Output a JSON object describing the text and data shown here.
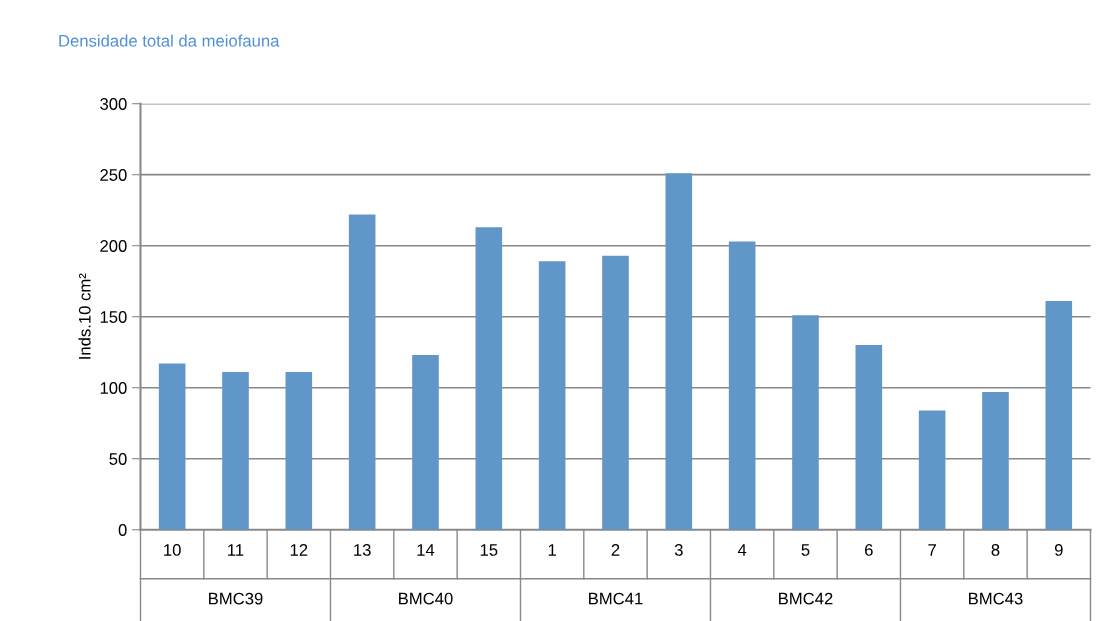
{
  "chart_data": {
    "type": "bar",
    "title": "Densidade total da meiofauna",
    "ylabel": "Inds.10 cm²",
    "categories": [
      "10",
      "11",
      "12",
      "13",
      "14",
      "15",
      "1",
      "2",
      "3",
      "4",
      "5",
      "6",
      "7",
      "8",
      "9"
    ],
    "values": [
      117,
      111,
      111,
      222,
      123,
      213,
      189,
      193,
      251,
      203,
      151,
      130,
      84,
      97,
      161
    ],
    "color": "#6096c8",
    "ylim": [
      0,
      300
    ],
    "yticks": [
      0,
      50,
      100,
      150,
      200,
      250,
      300
    ],
    "grid": "y",
    "annotations": [
      "BMC39",
      "BMC40",
      "BMC41",
      "BMC42",
      "BMC43"
    ]
  }
}
